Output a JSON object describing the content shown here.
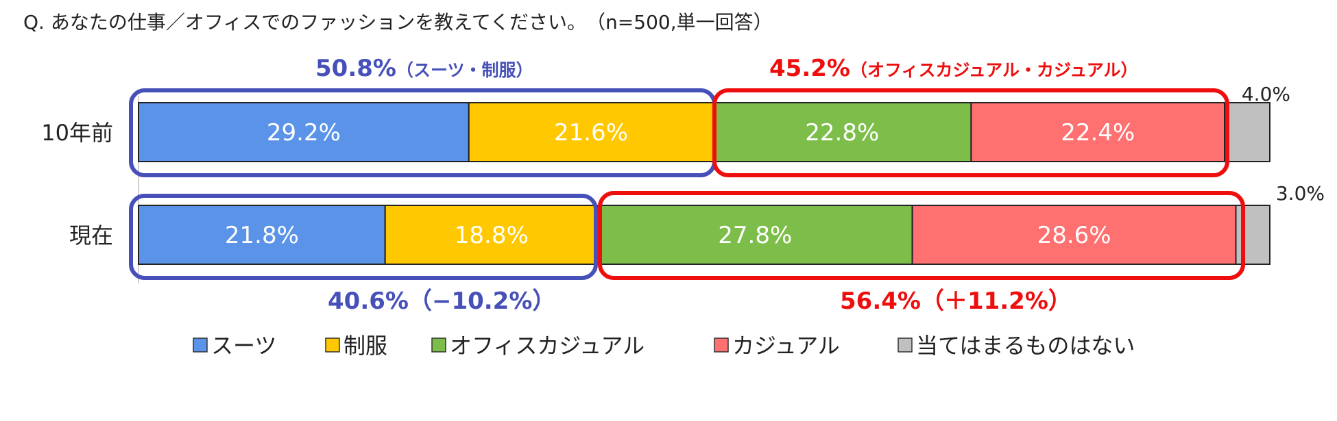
{
  "question": "Q. あなたの仕事／オフィスでのファッションを教えてください。　（n=500,単一回答）",
  "colors": {
    "suit": "#5B93E8",
    "uniform": "#FFC800",
    "office_casual": "#7DBE4A",
    "casual": "#FF7071",
    "none": "#C0C0C0",
    "formal_group": "#4650B8",
    "casual_group": "#EE0E0E"
  },
  "group_labels": {
    "before_formal_pct": "50.8%",
    "before_formal_sub": "（スーツ・制服）",
    "before_casual_pct": "45.2%",
    "before_casual_sub": "（オフィスカジュアル・カジュアル）",
    "now_formal": "40.6%（−10.2%）",
    "now_casual": "56.4%（＋11.2%）"
  },
  "chart_data": {
    "type": "bar",
    "orientation": "horizontal",
    "stacked": true,
    "categories": [
      "10年前",
      "現在"
    ],
    "series": [
      {
        "name": "スーツ",
        "values": [
          29.2,
          21.8
        ],
        "labels": [
          "29.2%",
          "21.8%"
        ]
      },
      {
        "name": "制服",
        "values": [
          21.6,
          18.8
        ],
        "labels": [
          "21.6%",
          "18.8%"
        ]
      },
      {
        "name": "オフィスカジュアル",
        "values": [
          22.8,
          27.8
        ],
        "labels": [
          "22.8%",
          "27.8%"
        ]
      },
      {
        "name": "カジュアル",
        "values": [
          22.4,
          28.6
        ],
        "labels": [
          "22.4%",
          "28.6%"
        ]
      },
      {
        "name": "当てはまるものはない",
        "values": [
          4.0,
          3.0
        ],
        "labels": [
          "4.0%",
          "3.0%"
        ]
      }
    ],
    "xlim": [
      0,
      100
    ],
    "legend": "bottom"
  }
}
